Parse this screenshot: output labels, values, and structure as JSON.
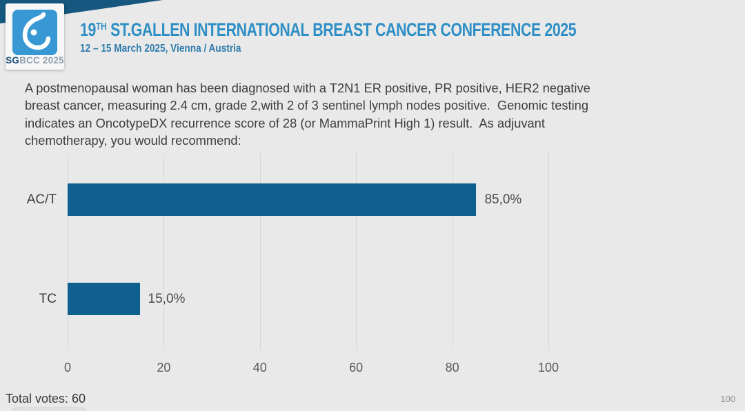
{
  "colors": {
    "background": "#e9e9e9",
    "band": "#15577e",
    "logo_blue": "#3798d3",
    "title_blue": "#2e8fc5",
    "subtitle_blue": "#2e7cab",
    "bar_blue": "#10608f",
    "text_dark": "#3d3d3d",
    "gridline": "#d6d6d6"
  },
  "header": {
    "logo": {
      "icon": "breast-symbol-icon",
      "brand_bold": "SG",
      "brand_rest": "BCC 2025"
    },
    "title_number": "19",
    "title_ordinal": "TH",
    "title_rest": " ST.GALLEN INTERNATIONAL BREAST CANCER CONFERENCE 2025",
    "subtitle": "12 – 15 March 2025, Vienna / Austria"
  },
  "question": {
    "text": "A postmenopausal woman has been diagnosed with a T2N1 ER positive, PR positive, HER2 negative\nbreast cancer, measuring 2.4 cm, grade 2,with 2 of 3 sentinel lymph nodes positive.  Genomic testing\nindicates an OncotypeDX recurrence score of 28 (or MammaPrint High 1) result.  As adjuvant\nchemotherapy, you would recommend:"
  },
  "chart_data": {
    "type": "bar",
    "orientation": "horizontal",
    "title": "",
    "categories": [
      "AC/T",
      "TC"
    ],
    "values": [
      85.0,
      15.0
    ],
    "value_labels": [
      "85,0%",
      "15,0%"
    ],
    "xlim": [
      0,
      100
    ],
    "x_ticks": [
      0,
      20,
      40,
      60,
      80,
      100
    ],
    "grid": true,
    "legend": false,
    "bar_color": "#10608f"
  },
  "footer": {
    "total_votes": "Total votes: 60",
    "page_number": "100"
  }
}
